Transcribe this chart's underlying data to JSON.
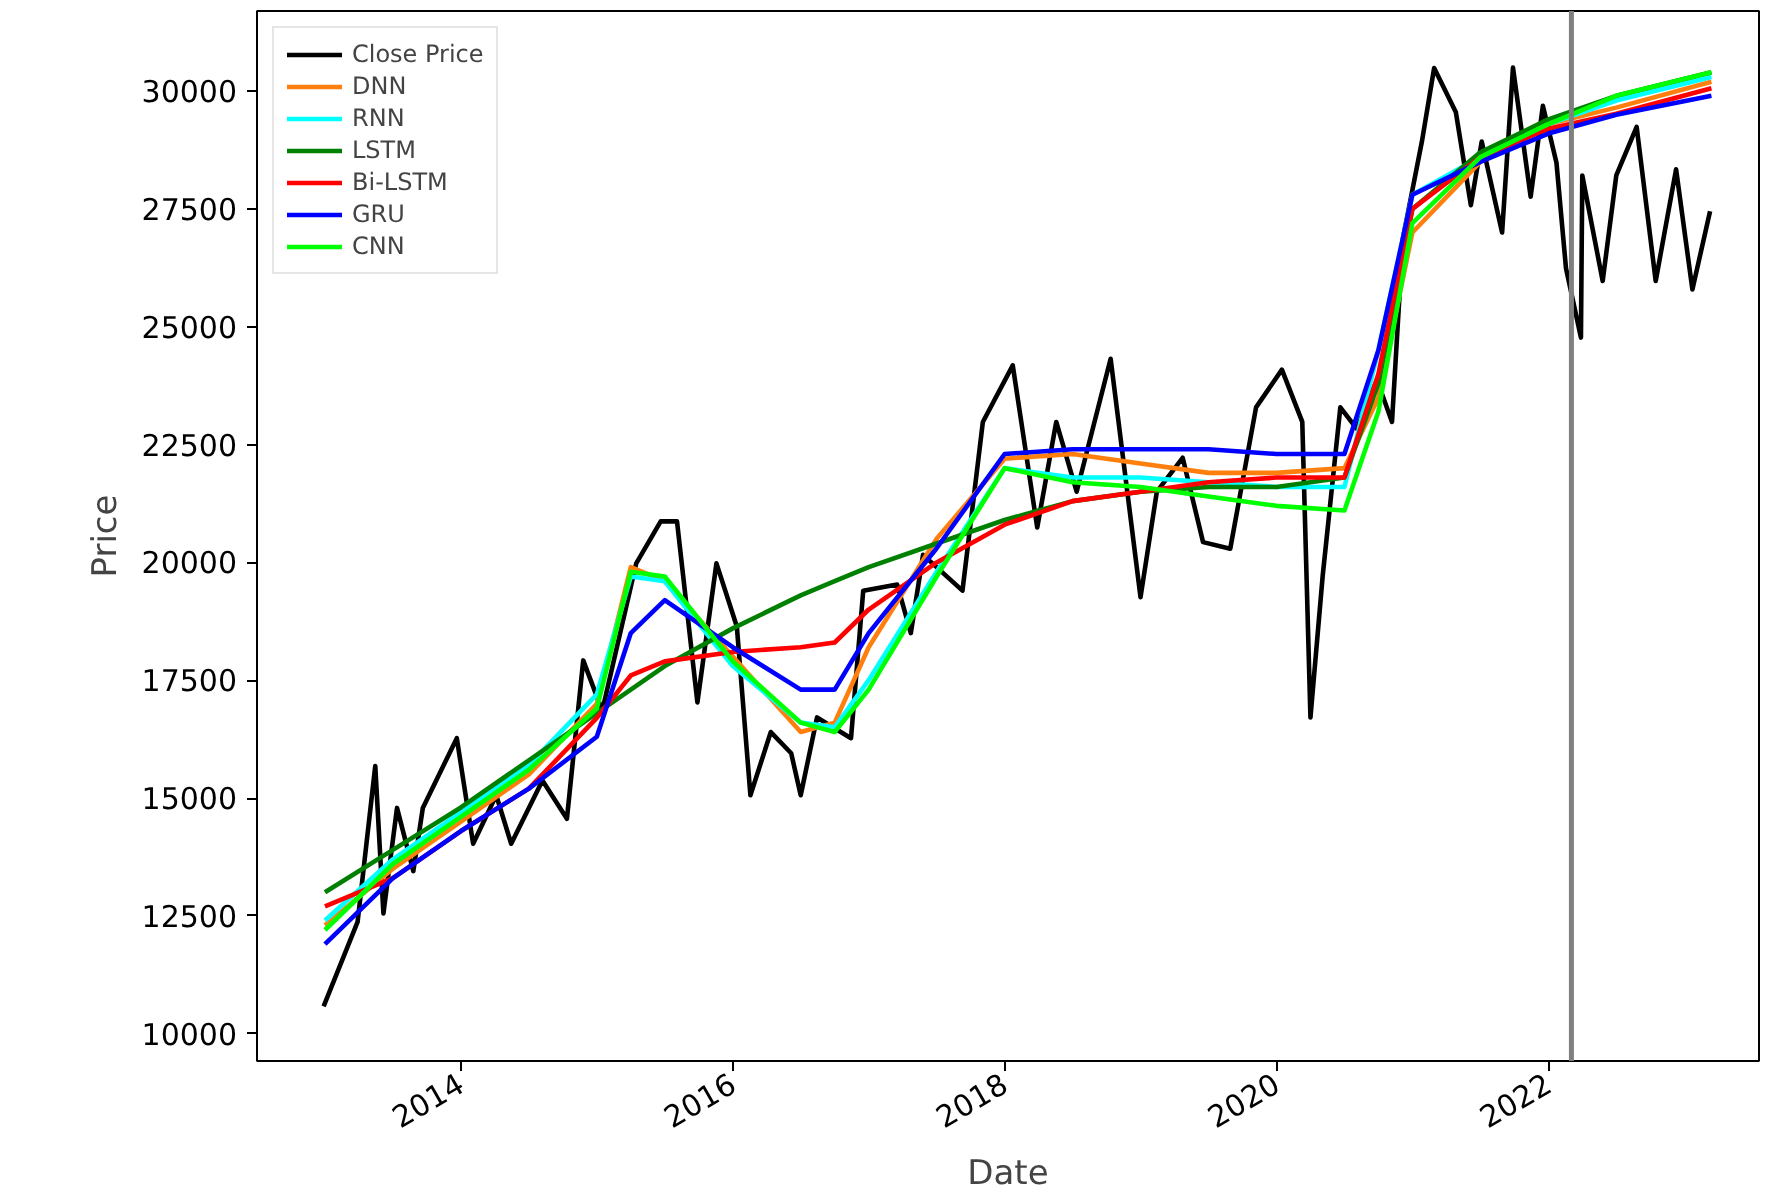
{
  "chart_data": {
    "type": "line",
    "xlabel": "Date",
    "ylabel": "Price",
    "xlim": [
      2012.5,
      2023.55
    ],
    "ylim": [
      9420,
      31700
    ],
    "xticks": [
      2014,
      2016,
      2018,
      2020,
      2022
    ],
    "yticks": [
      10000,
      12500,
      15000,
      17500,
      20000,
      22500,
      25000,
      27500,
      30000
    ],
    "grid": false,
    "legend": "top left",
    "line_style": "solid",
    "marker": "none",
    "x": [
      2013.0,
      2013.5,
      2014.0,
      2014.5,
      2015.0,
      2015.25,
      2015.5,
      2016.0,
      2016.5,
      2016.75,
      2017.0,
      2017.5,
      2018.0,
      2018.5,
      2019.0,
      2019.5,
      2020.0,
      2020.5,
      2020.75,
      2021.0,
      2021.5,
      2022.0,
      2022.5,
      2023.2
    ],
    "ref_lines": [
      {
        "axis": "x",
        "value": 2022.17,
        "color": "#808080"
      }
    ],
    "series": [
      {
        "name": "Close Price",
        "color": "#000000",
        "x": [
          2012.99,
          2013.24,
          2013.37,
          2013.43,
          2013.53,
          2013.65,
          2013.72,
          2013.97,
          2014.09,
          2014.26,
          2014.37,
          2014.6,
          2014.78,
          2014.9,
          2015.04,
          2015.29,
          2015.47,
          2015.59,
          2015.74,
          2015.88,
          2016.03,
          2016.13,
          2016.28,
          2016.43,
          2016.5,
          2016.62,
          2016.87,
          2016.96,
          2017.21,
          2017.31,
          2017.4,
          2017.69,
          2017.84,
          2018.06,
          2018.24,
          2018.38,
          2018.53,
          2018.78,
          2019.0,
          2019.12,
          2019.31,
          2019.46,
          2019.66,
          2019.85,
          2020.04,
          2020.19,
          2020.25,
          2020.34,
          2020.47,
          2020.59,
          2020.74,
          2020.85,
          2020.93,
          2021.07,
          2021.16,
          2021.32,
          2021.43,
          2021.51,
          2021.66,
          2021.74,
          2021.87,
          2021.96,
          2022.06,
          2022.13,
          2022.24,
          2022.25,
          2022.4,
          2022.5,
          2022.65,
          2022.79,
          2022.94,
          2023.06,
          2023.19
        ],
        "values": [
          10580,
          12370,
          15680,
          12550,
          14790,
          13450,
          14790,
          16270,
          14030,
          15060,
          14030,
          15370,
          14560,
          17920,
          16850,
          19980,
          20870,
          20870,
          17030,
          19980,
          18640,
          15060,
          16400,
          15950,
          15060,
          16710,
          16270,
          19400,
          19530,
          18500,
          20160,
          19400,
          22980,
          24180,
          20740,
          22980,
          21500,
          24320,
          19260,
          21500,
          22220,
          20430,
          20290,
          23290,
          24090,
          22980,
          16710,
          19710,
          23290,
          22840,
          23870,
          22980,
          26870,
          28930,
          30490,
          29550,
          27580,
          28930,
          27000,
          30500,
          27760,
          29690,
          28480,
          26240,
          24770,
          28210,
          25970,
          28210,
          29240,
          25970,
          28340,
          25790,
          27450
        ]
      },
      {
        "name": "DNN",
        "color": "#ff7f0e",
        "values": [
          12300,
          13500,
          14500,
          15500,
          17000,
          19900,
          19600,
          18000,
          16400,
          16600,
          18200,
          20500,
          22200,
          22300,
          22100,
          21900,
          21900,
          22000,
          23500,
          27000,
          28500,
          29300,
          29650,
          30200
        ]
      },
      {
        "name": "RNN",
        "color": "#00ffff",
        "values": [
          12400,
          13700,
          14700,
          15700,
          17200,
          19700,
          19600,
          17800,
          16600,
          16500,
          17500,
          19800,
          22000,
          21800,
          21800,
          21700,
          21600,
          21600,
          24500,
          27800,
          28600,
          29300,
          29800,
          30300
        ]
      },
      {
        "name": "LSTM",
        "color": "#008000",
        "values": [
          13000,
          13900,
          14800,
          15800,
          16800,
          17300,
          17800,
          18600,
          19300,
          19600,
          19900,
          20400,
          20900,
          21300,
          21500,
          21600,
          21600,
          21800,
          23800,
          27500,
          28700,
          29400,
          29900,
          30400
        ]
      },
      {
        "name": "Bi-LSTM",
        "color": "#ff0000",
        "values": [
          12700,
          13300,
          14300,
          15200,
          16700,
          17600,
          17900,
          18100,
          18200,
          18300,
          19000,
          20000,
          20800,
          21300,
          21500,
          21700,
          21800,
          21800,
          24000,
          27500,
          28600,
          29200,
          29520,
          30060
        ]
      },
      {
        "name": "GRU",
        "color": "#0000ff",
        "values": [
          11900,
          13300,
          14300,
          15200,
          16300,
          18500,
          19200,
          18200,
          17300,
          17300,
          18500,
          20300,
          22300,
          22400,
          22400,
          22400,
          22300,
          22300,
          24500,
          27800,
          28500,
          29100,
          29500,
          29900
        ]
      },
      {
        "name": "CNN",
        "color": "#00ff00",
        "values": [
          12200,
          13600,
          14600,
          15600,
          16900,
          19800,
          19700,
          17900,
          16600,
          16400,
          17300,
          19700,
          22000,
          21700,
          21600,
          21400,
          21200,
          21100,
          23200,
          27200,
          28600,
          29300,
          29900,
          30400
        ]
      }
    ]
  }
}
